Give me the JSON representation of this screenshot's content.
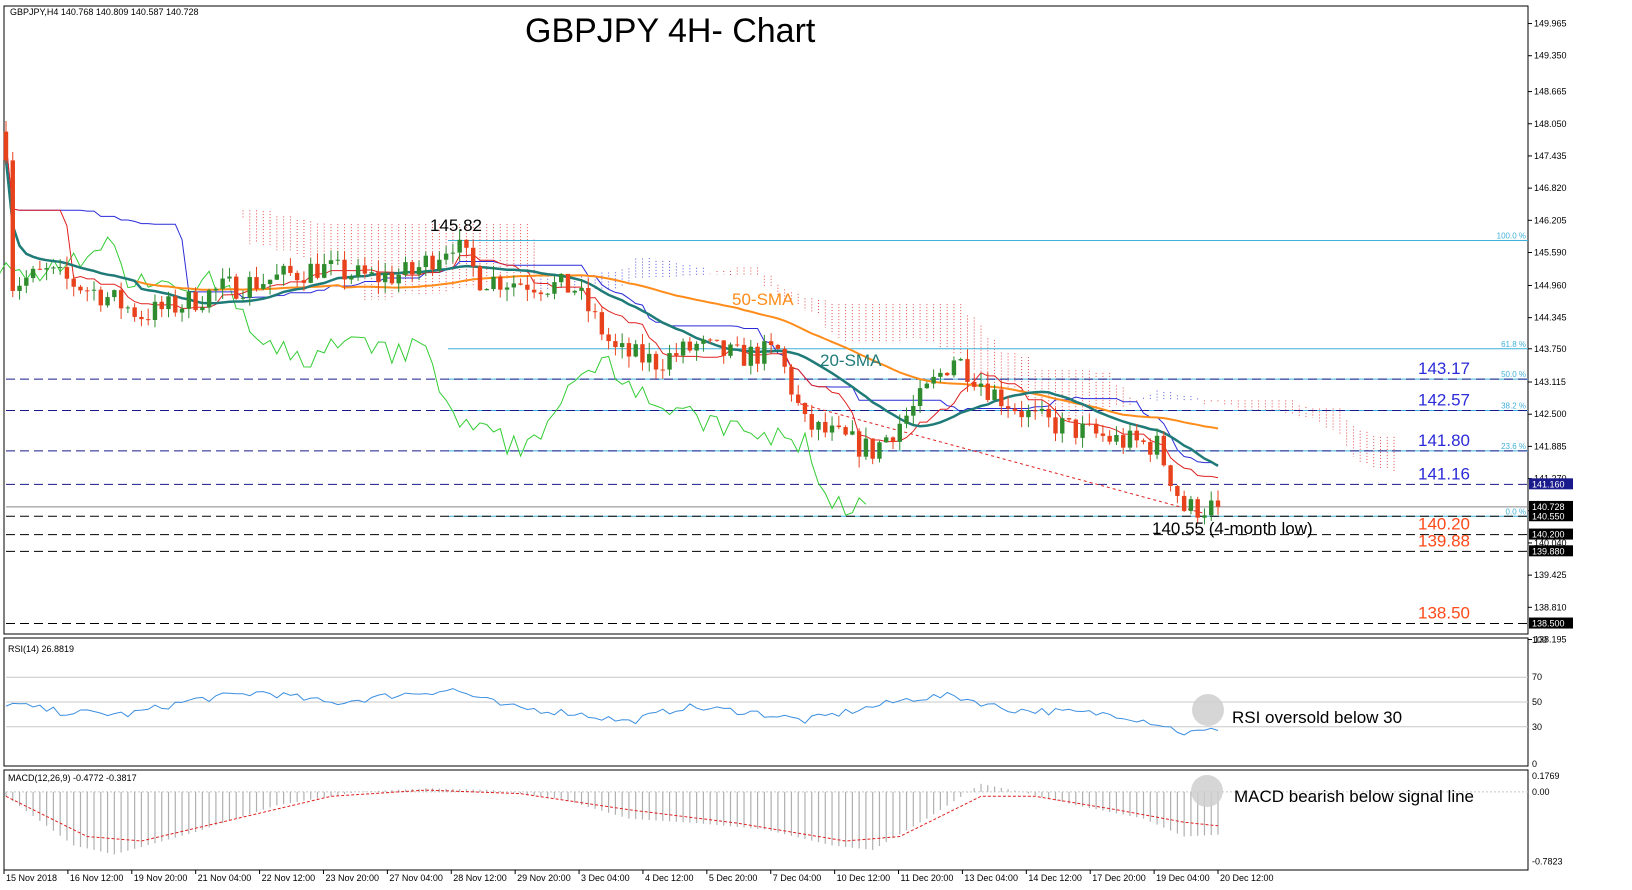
{
  "header": {
    "symbol_info": "GBPJPY,H4  140.768 140.809 140.587 140.728",
    "title": "GBPJPY 4H- Chart"
  },
  "colors": {
    "bull": "#2e8b2e",
    "bear": "#e8421c",
    "sma20": "#1f7b78",
    "sma50": "#ff8c1a",
    "kijun": "#2b2bd9",
    "tenkan": "#e02020",
    "chikou": "#33cc33",
    "cloud_bull": "#2b2bd9",
    "cloud_bear": "#e02020",
    "fib": "#3fb0d8",
    "level_blue": "#2b2bd9",
    "level_red": "#ff4a1a",
    "rsi": "#3b8fe0",
    "macd_hist": "#b0b0b0",
    "macd_signal": "#e02020"
  },
  "annotations": {
    "peak": "145.82",
    "sma50": "50-SMA",
    "sma20": "20-SMA",
    "low": "140.55 (4-month low)",
    "rsi_note": "RSI oversold below 30",
    "macd_note": "MACD bearish below signal line"
  },
  "levels": [
    {
      "label": "143.17",
      "value": 143.17,
      "color_key": "level_blue"
    },
    {
      "label": "142.57",
      "value": 142.57,
      "color_key": "level_blue"
    },
    {
      "label": "141.80",
      "value": 141.8,
      "color_key": "level_blue"
    },
    {
      "label": "141.16",
      "value": 141.16,
      "color_key": "level_blue"
    },
    {
      "label": "140.20",
      "value": 140.2,
      "color_key": "level_red"
    },
    {
      "label": "139.88",
      "value": 139.88,
      "color_key": "level_red"
    },
    {
      "label": "138.50",
      "value": 138.5,
      "color_key": "level_red"
    }
  ],
  "chart_data": {
    "type": "candlestick",
    "ylim": [
      138.3,
      150.3
    ],
    "y_ticks": [
      "149.965",
      "149.350",
      "148.665",
      "148.050",
      "147.435",
      "146.820",
      "146.205",
      "145.590",
      "144.960",
      "144.345",
      "143.750",
      "143.115",
      "142.500",
      "141.885",
      "141.270",
      "140.655",
      "140.040",
      "139.425",
      "138.810",
      "138.195"
    ],
    "price_boxes": [
      {
        "text": "141.160",
        "value": 141.16,
        "fill": "#1a1a8c"
      },
      {
        "text": "140.728",
        "value": 140.728,
        "fill": "#000000"
      },
      {
        "text": "140.550",
        "value": 140.55,
        "fill": "#000000"
      },
      {
        "text": "140.200",
        "value": 140.2,
        "fill": "#000000"
      },
      {
        "text": "139.880",
        "value": 139.88,
        "fill": "#000000"
      },
      {
        "text": "138.500",
        "value": 138.5,
        "fill": "#000000"
      }
    ],
    "fib_levels": [
      {
        "label": "100.0 %",
        "value": 145.82
      },
      {
        "label": "61.8 %",
        "value": 143.75
      },
      {
        "label": "50.0 %",
        "value": 143.17
      },
      {
        "label": "38.2 %",
        "value": 142.57
      },
      {
        "label": "23.6 %",
        "value": 141.8
      },
      {
        "label": "0.0 %",
        "value": 140.55
      }
    ],
    "time_labels": [
      "15 Nov 2018",
      "16 Nov 12:00",
      "19 Nov 20:00",
      "21 Nov 04:00",
      "22 Nov 12:00",
      "23 Nov 20:00",
      "27 Nov 04:00",
      "28 Nov 12:00",
      "29 Nov 20:00",
      "3 Dec 04:00",
      "4 Dec 12:00",
      "5 Dec 20:00",
      "7 Dec 04:00",
      "10 Dec 12:00",
      "11 Dec 20:00",
      "13 Dec 04:00",
      "14 Dec 12:00",
      "17 Dec 20:00",
      "19 Dec 04:00",
      "20 Dec 12:00"
    ],
    "anchors": [
      {
        "i": 0,
        "v": 147.6
      },
      {
        "i": 1,
        "v": 145.0
      },
      {
        "i": 6,
        "v": 145.2
      },
      {
        "i": 14,
        "v": 144.8
      },
      {
        "i": 20,
        "v": 144.4
      },
      {
        "i": 26,
        "v": 144.6
      },
      {
        "i": 32,
        "v": 144.9
      },
      {
        "i": 40,
        "v": 145.1
      },
      {
        "i": 46,
        "v": 145.3
      },
      {
        "i": 54,
        "v": 145.1
      },
      {
        "i": 60,
        "v": 145.2
      },
      {
        "i": 66,
        "v": 145.8
      },
      {
        "i": 70,
        "v": 145.1
      },
      {
        "i": 78,
        "v": 145.0
      },
      {
        "i": 84,
        "v": 144.9
      },
      {
        "i": 90,
        "v": 143.7
      },
      {
        "i": 96,
        "v": 143.5
      },
      {
        "i": 102,
        "v": 143.8
      },
      {
        "i": 108,
        "v": 143.6
      },
      {
        "i": 114,
        "v": 143.7
      },
      {
        "i": 118,
        "v": 142.3
      },
      {
        "i": 124,
        "v": 142.0
      },
      {
        "i": 128,
        "v": 141.8
      },
      {
        "i": 134,
        "v": 142.6
      },
      {
        "i": 140,
        "v": 143.6
      },
      {
        "i": 146,
        "v": 142.9
      },
      {
        "i": 152,
        "v": 142.4
      },
      {
        "i": 158,
        "v": 142.2
      },
      {
        "i": 164,
        "v": 142.0
      },
      {
        "i": 170,
        "v": 141.9
      },
      {
        "i": 174,
        "v": 140.7
      },
      {
        "i": 179,
        "v": 140.73
      }
    ],
    "rsi": {
      "label": "RSI(14) 26.8819",
      "ylim": [
        0,
        100
      ],
      "levels": [
        70,
        50,
        30
      ],
      "ticks": [
        "100",
        "70",
        "50",
        "30",
        "0"
      ],
      "anchors": [
        {
          "i": 0,
          "v": 49
        },
        {
          "i": 8,
          "v": 42
        },
        {
          "i": 18,
          "v": 40
        },
        {
          "i": 28,
          "v": 52
        },
        {
          "i": 38,
          "v": 58
        },
        {
          "i": 48,
          "v": 49
        },
        {
          "i": 58,
          "v": 56
        },
        {
          "i": 66,
          "v": 60
        },
        {
          "i": 74,
          "v": 46
        },
        {
          "i": 84,
          "v": 41
        },
        {
          "i": 92,
          "v": 34
        },
        {
          "i": 100,
          "v": 46
        },
        {
          "i": 110,
          "v": 42
        },
        {
          "i": 118,
          "v": 35
        },
        {
          "i": 126,
          "v": 44
        },
        {
          "i": 134,
          "v": 53
        },
        {
          "i": 140,
          "v": 55
        },
        {
          "i": 148,
          "v": 44
        },
        {
          "i": 156,
          "v": 42
        },
        {
          "i": 164,
          "v": 40
        },
        {
          "i": 170,
          "v": 33
        },
        {
          "i": 174,
          "v": 25
        },
        {
          "i": 179,
          "v": 27
        }
      ]
    },
    "macd": {
      "label": "MACD(12,26,9) -0.4772 -0.3817",
      "ylim": [
        -0.83,
        0.2
      ],
      "ticks": [
        "0.1769",
        "0.00",
        "-0.7823"
      ],
      "hist_anchors": [
        {
          "i": 0,
          "v": -0.05
        },
        {
          "i": 10,
          "v": -0.6
        },
        {
          "i": 16,
          "v": -0.7
        },
        {
          "i": 28,
          "v": -0.45
        },
        {
          "i": 40,
          "v": -0.15
        },
        {
          "i": 52,
          "v": 0.0
        },
        {
          "i": 62,
          "v": 0.04
        },
        {
          "i": 72,
          "v": 0.02
        },
        {
          "i": 82,
          "v": -0.08
        },
        {
          "i": 92,
          "v": -0.3
        },
        {
          "i": 102,
          "v": -0.35
        },
        {
          "i": 112,
          "v": -0.42
        },
        {
          "i": 122,
          "v": -0.6
        },
        {
          "i": 128,
          "v": -0.65
        },
        {
          "i": 136,
          "v": -0.3
        },
        {
          "i": 144,
          "v": 0.09
        },
        {
          "i": 150,
          "v": 0.0
        },
        {
          "i": 158,
          "v": -0.15
        },
        {
          "i": 168,
          "v": -0.3
        },
        {
          "i": 174,
          "v": -0.5
        },
        {
          "i": 179,
          "v": -0.48
        }
      ],
      "signal_anchors": [
        {
          "i": 0,
          "v": -0.05
        },
        {
          "i": 12,
          "v": -0.5
        },
        {
          "i": 20,
          "v": -0.55
        },
        {
          "i": 34,
          "v": -0.3
        },
        {
          "i": 48,
          "v": -0.05
        },
        {
          "i": 62,
          "v": 0.02
        },
        {
          "i": 76,
          "v": -0.02
        },
        {
          "i": 92,
          "v": -0.2
        },
        {
          "i": 108,
          "v": -0.35
        },
        {
          "i": 124,
          "v": -0.55
        },
        {
          "i": 132,
          "v": -0.5
        },
        {
          "i": 144,
          "v": -0.05
        },
        {
          "i": 152,
          "v": -0.05
        },
        {
          "i": 164,
          "v": -0.2
        },
        {
          "i": 174,
          "v": -0.34
        },
        {
          "i": 179,
          "v": -0.38
        }
      ]
    }
  }
}
